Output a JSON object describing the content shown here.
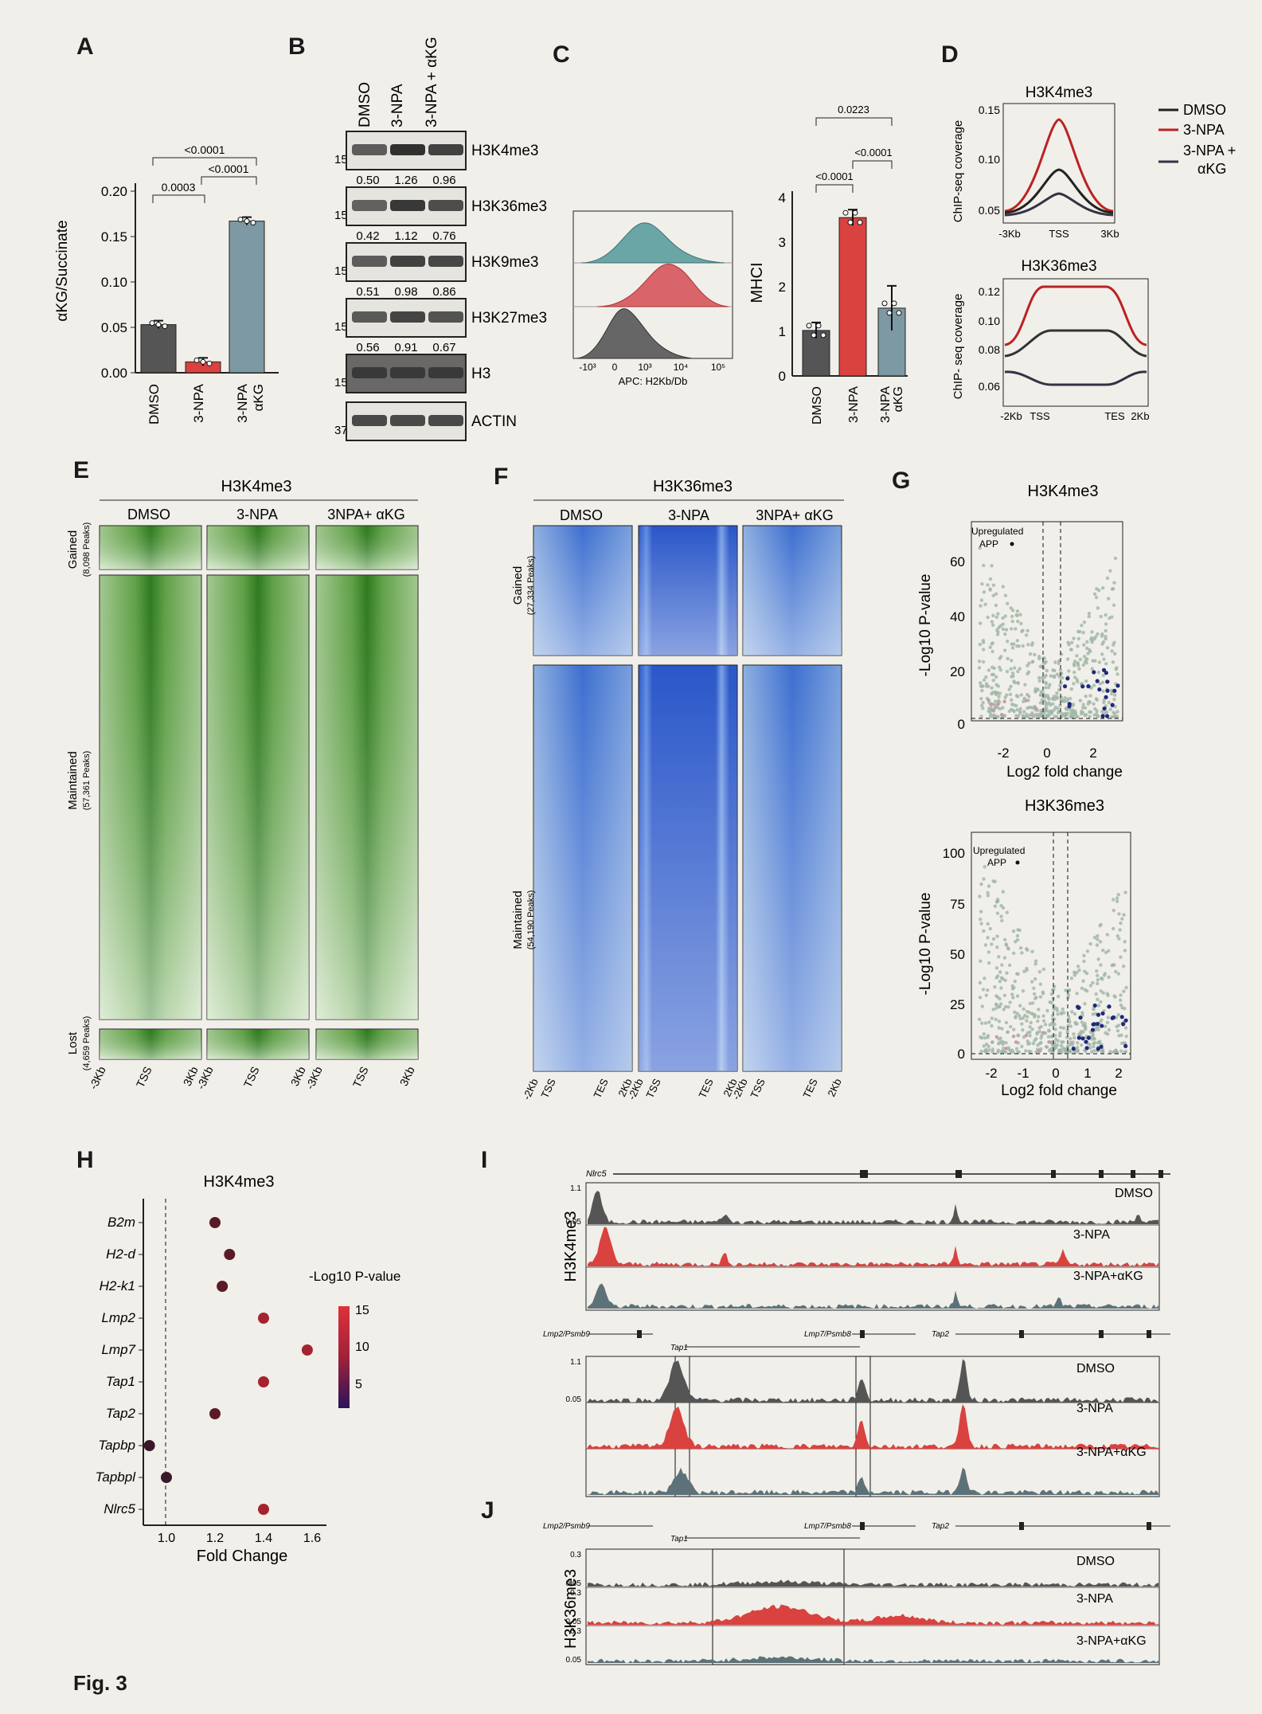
{
  "figure_label": "Fig. 3",
  "panel_labels": [
    "A",
    "B",
    "C",
    "D",
    "E",
    "F",
    "G",
    "H",
    "I",
    "J"
  ],
  "colors": {
    "dmso": "#555555",
    "npa": "#d9423f",
    "akg": "#7d99a3",
    "green": "#3f8a2e",
    "blue": "#2d5ec9",
    "dark_blue": "#2a2a7a"
  },
  "panelA": {
    "ylabel": "αKG/Succinate",
    "yticks": [
      "0.00",
      "0.05",
      "0.10",
      "0.15",
      "0.20"
    ],
    "xlabels": [
      "DMSO",
      "3-NPA",
      "3-NPA αKG"
    ],
    "pvals": [
      "0.0003",
      "<0.0001",
      "<0.0001"
    ],
    "chart_data": {
      "type": "bar",
      "categories": [
        "DMSO",
        "3-NPA",
        "3-NPA αKG"
      ],
      "values": [
        0.053,
        0.012,
        0.167
      ],
      "ylim": [
        0,
        0.2
      ],
      "ylabel": "αKG/Succinate"
    }
  },
  "panelB": {
    "columns": [
      "DMSO",
      "3-NPA",
      "3-NPA + αKG"
    ],
    "rows": [
      {
        "mw": "15",
        "label": "H3K4me3",
        "quant": [
          "0.50",
          "1.26",
          "0.96"
        ]
      },
      {
        "mw": "15",
        "label": "H3K36me3",
        "quant": [
          "0.42",
          "1.12",
          "0.76"
        ]
      },
      {
        "mw": "15",
        "label": "H3K9me3",
        "quant": [
          "0.51",
          "0.98",
          "0.86"
        ]
      },
      {
        "mw": "15",
        "label": "H3K27me3",
        "quant": [
          "0.56",
          "0.91",
          "0.67"
        ]
      },
      {
        "mw": "15",
        "label": "H3",
        "quant": []
      },
      {
        "mw": "37",
        "label": "ACTIN",
        "quant": []
      }
    ]
  },
  "panelC": {
    "hist_xlabel": "APC: H2Kb/Db",
    "hist_xticks": [
      "-10³",
      "0",
      "10³",
      "10⁴",
      "10⁵"
    ],
    "ylabel": "MHCI",
    "yticks": [
      "0",
      "1",
      "2",
      "3",
      "4"
    ],
    "xlabels": [
      "DMSO",
      "3-NPA",
      "3-NPA αKG"
    ],
    "pvals": [
      "<0.0001",
      "<0.0001",
      "0.0223"
    ],
    "chart_data": {
      "type": "bar",
      "categories": [
        "DMSO",
        "3-NPA",
        "3-NPA αKG"
      ],
      "values": [
        1.02,
        3.55,
        1.52
      ],
      "ylim": [
        0,
        4
      ],
      "ylabel": "MHCI"
    }
  },
  "panelD": {
    "top_title": "H3K4me3",
    "bottom_title": "H3K36me3",
    "ylabel_top": "ChIP-seq coverage",
    "ylabel_bottom": "ChIP- seq coverage",
    "top_yticks": [
      "0.05",
      "0.10",
      "0.15"
    ],
    "top_xticks": [
      "-3Kb",
      "TSS",
      "3Kb"
    ],
    "bottom_yticks": [
      "0.06",
      "0.08",
      "0.10",
      "0.12"
    ],
    "bottom_xticks": [
      "-2Kb",
      "TSS",
      "TES",
      "2Kb"
    ],
    "legend": [
      "DMSO",
      "3-NPA",
      "3-NPA +",
      "αKG"
    ]
  },
  "panelE": {
    "title": "H3K4me3",
    "columns": [
      "DMSO",
      "3-NPA",
      "3NPA+ αKG"
    ],
    "groups": [
      {
        "label": "Gained",
        "count": "(8,098 Peaks)"
      },
      {
        "label": "Maintained",
        "count": "(57,361 Peaks)"
      },
      {
        "label": "Lost",
        "count": "(4,659 Peaks)"
      }
    ],
    "xticks": [
      "-3Kb",
      "TSS",
      "3Kb"
    ]
  },
  "panelF": {
    "title": "H3K36me3",
    "columns": [
      "DMSO",
      "3-NPA",
      "3NPA+ αKG"
    ],
    "groups": [
      {
        "label": "Gained",
        "count": "(27,334 Peaks)"
      },
      {
        "label": "Maintained",
        "count": "(54,190 Peaks)"
      }
    ],
    "xticks": [
      "-2Kb",
      "TSS",
      "TES",
      "2Kb"
    ]
  },
  "panelG": {
    "top_title": "H3K4me3",
    "bottom_title": "H3K36me3",
    "ylabel": "-Log10 P-value",
    "xlabel": "Log2 fold change",
    "annotation": [
      "Upregulated",
      "APP"
    ],
    "top_yticks": [
      "0",
      "20",
      "40",
      "60"
    ],
    "bottom_yticks": [
      "0",
      "25",
      "50",
      "75",
      "100"
    ],
    "top_xticks": [
      "-2",
      "0",
      "2"
    ],
    "bottom_xticks": [
      "-2",
      "-1",
      "0",
      "1",
      "2"
    ]
  },
  "panelH": {
    "title": "H3K4me3",
    "xlabel": "Fold Change",
    "xticks": [
      "1.0",
      "1.2",
      "1.4",
      "1.6"
    ],
    "legend_title": "-Log10 P-value",
    "legend_ticks": [
      "15",
      "10",
      "5"
    ],
    "chart_data": {
      "type": "scatter",
      "categories": [
        "B2m",
        "H2-d",
        "H2-k1",
        "Lmp2",
        "Lmp7",
        "Tap1",
        "Tap2",
        "Tapbp",
        "Tapbpl",
        "Nlrc5"
      ],
      "values": [
        1.2,
        1.26,
        1.23,
        1.4,
        1.58,
        1.4,
        1.2,
        0.93,
        1.0,
        1.4
      ],
      "xlim": [
        0.9,
        1.65
      ],
      "xlabel": "Fold Change"
    }
  },
  "panelI": {
    "ylabel": "H3K4me3",
    "gene_top": "Nlrc5",
    "genes_bottom": [
      "Lmp2/Psmb9",
      "Tap1",
      "Lmp7/Psmb8",
      "Tap2"
    ],
    "tracks": [
      "DMSO",
      "3-NPA",
      "3-NPA+αKG"
    ],
    "scale_top": [
      "1.1",
      "0.05"
    ],
    "scale_bottom": [
      "1.1",
      "0.05"
    ]
  },
  "panelJ": {
    "ylabel": "H3K36me3",
    "genes": [
      "Lmp2/Psmb9",
      "Tap1",
      "Lmp7/Psmb8",
      "Tap2"
    ],
    "tracks": [
      "DMSO",
      "3-NPA",
      "3-NPA+αKG"
    ],
    "scale": [
      "0.3",
      "0.05"
    ]
  }
}
